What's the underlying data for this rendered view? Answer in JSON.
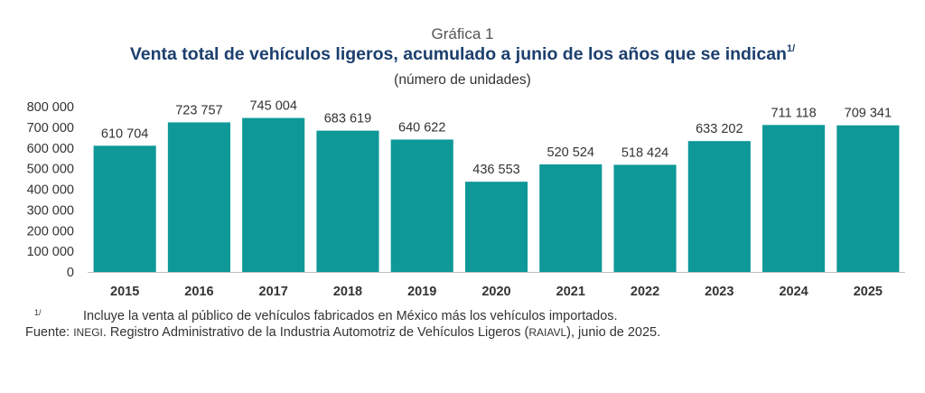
{
  "header": {
    "label": "Gráfica 1",
    "title": "Venta total de vehículos ligeros, acumulado a junio de los años que se indican",
    "title_note_mark": "1/",
    "subtitle": "(número de unidades)"
  },
  "chart_data": {
    "type": "bar",
    "categories": [
      "2015",
      "2016",
      "2017",
      "2018",
      "2019",
      "2020",
      "2021",
      "2022",
      "2023",
      "2024",
      "2025"
    ],
    "values": [
      610704,
      723757,
      745004,
      683619,
      640622,
      436553,
      520524,
      518424,
      633202,
      711118,
      709341
    ],
    "data_labels": [
      "610 704",
      "723 757",
      "745 004",
      "683 619",
      "640 622",
      "436 553",
      "520 524",
      "518 424",
      "633 202",
      "711 118",
      "709 341"
    ],
    "y_ticks": [
      0,
      100000,
      200000,
      300000,
      400000,
      500000,
      600000,
      700000,
      800000
    ],
    "y_tick_labels": [
      "0",
      "100 000",
      "200 000",
      "300 000",
      "400 000",
      "500 000",
      "600 000",
      "700 000",
      "800 000"
    ],
    "ylim": [
      0,
      800000
    ],
    "grid": false,
    "bar_color": "#0e9898"
  },
  "footnotes": {
    "note_mark": "1/",
    "note_text": "Incluye la venta al público de vehículos fabricados en México más los vehículos importados.",
    "source_label": "Fuente:",
    "source_org": "INEGI",
    "source_text_1": ". Registro Administrativo de la Industria Automotriz de Vehículos Ligeros (",
    "source_abbr": "RAIAVL",
    "source_text_2": "), junio de 2025."
  }
}
